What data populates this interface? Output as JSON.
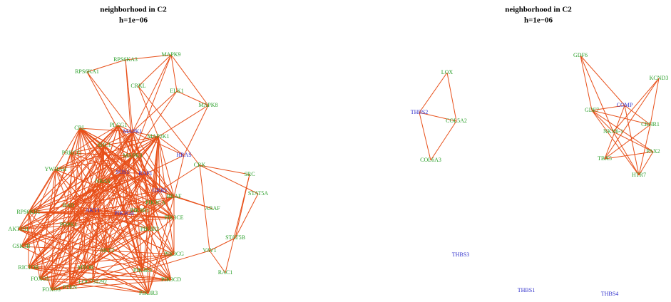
{
  "panels": [
    {
      "title": "neighborhood in C2",
      "subtitle": "h=1e−06",
      "nodes": [
        {
          "label": "MAPK9",
          "color": "#2ca02c"
        },
        {
          "label": "RPS6KA3",
          "color": "#2ca02c"
        },
        {
          "label": "RPS6KA1",
          "color": "#2ca02c"
        },
        {
          "label": "CRKL",
          "color": "#2ca02c"
        },
        {
          "label": "ELK1",
          "color": "#2ca02c"
        },
        {
          "label": "MAPK8",
          "color": "#2ca02c"
        },
        {
          "label": "CBL",
          "color": "#2ca02c"
        },
        {
          "label": "PLCG1",
          "color": "#2ca02c"
        },
        {
          "label": "MAPK1",
          "color": "#3333cc"
        },
        {
          "label": "MAP2K1",
          "color": "#2ca02c"
        },
        {
          "label": "SHC1",
          "color": "#2ca02c"
        },
        {
          "label": "HRAS",
          "color": "#3333cc"
        },
        {
          "label": "MAPK3",
          "color": "#2ca02c"
        },
        {
          "label": "PRKCG",
          "color": "#2ca02c"
        },
        {
          "label": "CRK",
          "color": "#2ca02c"
        },
        {
          "label": "SRC",
          "color": "#2ca02c"
        },
        {
          "label": "YWHAH",
          "color": "#2ca02c"
        },
        {
          "label": "SOS1",
          "color": "#3333cc"
        },
        {
          "label": "RAF1",
          "color": "#3333cc"
        },
        {
          "label": "NRAS",
          "color": "#2ca02c"
        },
        {
          "label": "STAT5A",
          "color": "#2ca02c"
        },
        {
          "label": "GRB2",
          "color": "#3333cc"
        },
        {
          "label": "BRAF",
          "color": "#2ca02c"
        },
        {
          "label": "BAD",
          "color": "#2ca02c"
        },
        {
          "label": "AKT1",
          "color": "#3333cc"
        },
        {
          "label": "PIK3CB",
          "color": "#3333cc"
        },
        {
          "label": "PIK3R1",
          "color": "#2ca02c"
        },
        {
          "label": "ARAF",
          "color": "#2ca02c"
        },
        {
          "label": "RPS6KB1",
          "color": "#2ca02c"
        },
        {
          "label": "AKT1S1",
          "color": "#2ca02c"
        },
        {
          "label": "PIK3CE",
          "color": "#2ca02c"
        },
        {
          "label": "STAT5B",
          "color": "#2ca02c"
        },
        {
          "label": "PIK3R2",
          "color": "#2ca02c"
        },
        {
          "label": "GSK3B",
          "color": "#2ca02c"
        },
        {
          "label": "VAV1",
          "color": "#2ca02c"
        },
        {
          "label": "PIK3CG",
          "color": "#2ca02c"
        },
        {
          "label": "RICTOR",
          "color": "#2ca02c"
        },
        {
          "label": "MTOR",
          "color": "#2ca02c"
        },
        {
          "label": "FOXO1",
          "color": "#2ca02c"
        },
        {
          "label": "FOXO3",
          "color": "#2ca02c"
        },
        {
          "label": "PTEN",
          "color": "#2ca02c"
        },
        {
          "label": "LOC731292",
          "color": "#2ca02c"
        },
        {
          "label": "PIK3R5",
          "color": "#2ca02c"
        },
        {
          "label": "PIK3CD",
          "color": "#2ca02c"
        },
        {
          "label": "RAC1",
          "color": "#2ca02c"
        },
        {
          "label": "PIK3R3",
          "color": "#2ca02c"
        },
        {
          "label": "PDPK1",
          "color": "#2ca02c"
        },
        {
          "label": "AKT3",
          "color": "#2ca02c"
        },
        {
          "label": "PIK3CA",
          "color": "#2ca02c"
        }
      ]
    },
    {
      "title": "neighborhood in C2",
      "subtitle": "h=1e−06",
      "nodes": [
        {
          "label": "LOX",
          "color": "#2ca02c"
        },
        {
          "label": "THBS2",
          "color": "#3333cc"
        },
        {
          "label": "COL5A2",
          "color": "#2ca02c"
        },
        {
          "label": "COL6A3",
          "color": "#2ca02c"
        },
        {
          "label": "GDF6",
          "color": "#2ca02c"
        },
        {
          "label": "KCND3",
          "color": "#2ca02c"
        },
        {
          "label": "COMP",
          "color": "#3333cc"
        },
        {
          "label": "GDF7",
          "color": "#2ca02c"
        },
        {
          "label": "CRHR1",
          "color": "#2ca02c"
        },
        {
          "label": "NKX6-1",
          "color": "#2ca02c"
        },
        {
          "label": "PAX2",
          "color": "#2ca02c"
        },
        {
          "label": "TBX5",
          "color": "#2ca02c"
        },
        {
          "label": "HTR7",
          "color": "#2ca02c"
        },
        {
          "label": "THBS3",
          "color": "#3333cc"
        },
        {
          "label": "THBS1",
          "color": "#3333cc"
        },
        {
          "label": "THBS4",
          "color": "#3333cc"
        }
      ]
    }
  ]
}
